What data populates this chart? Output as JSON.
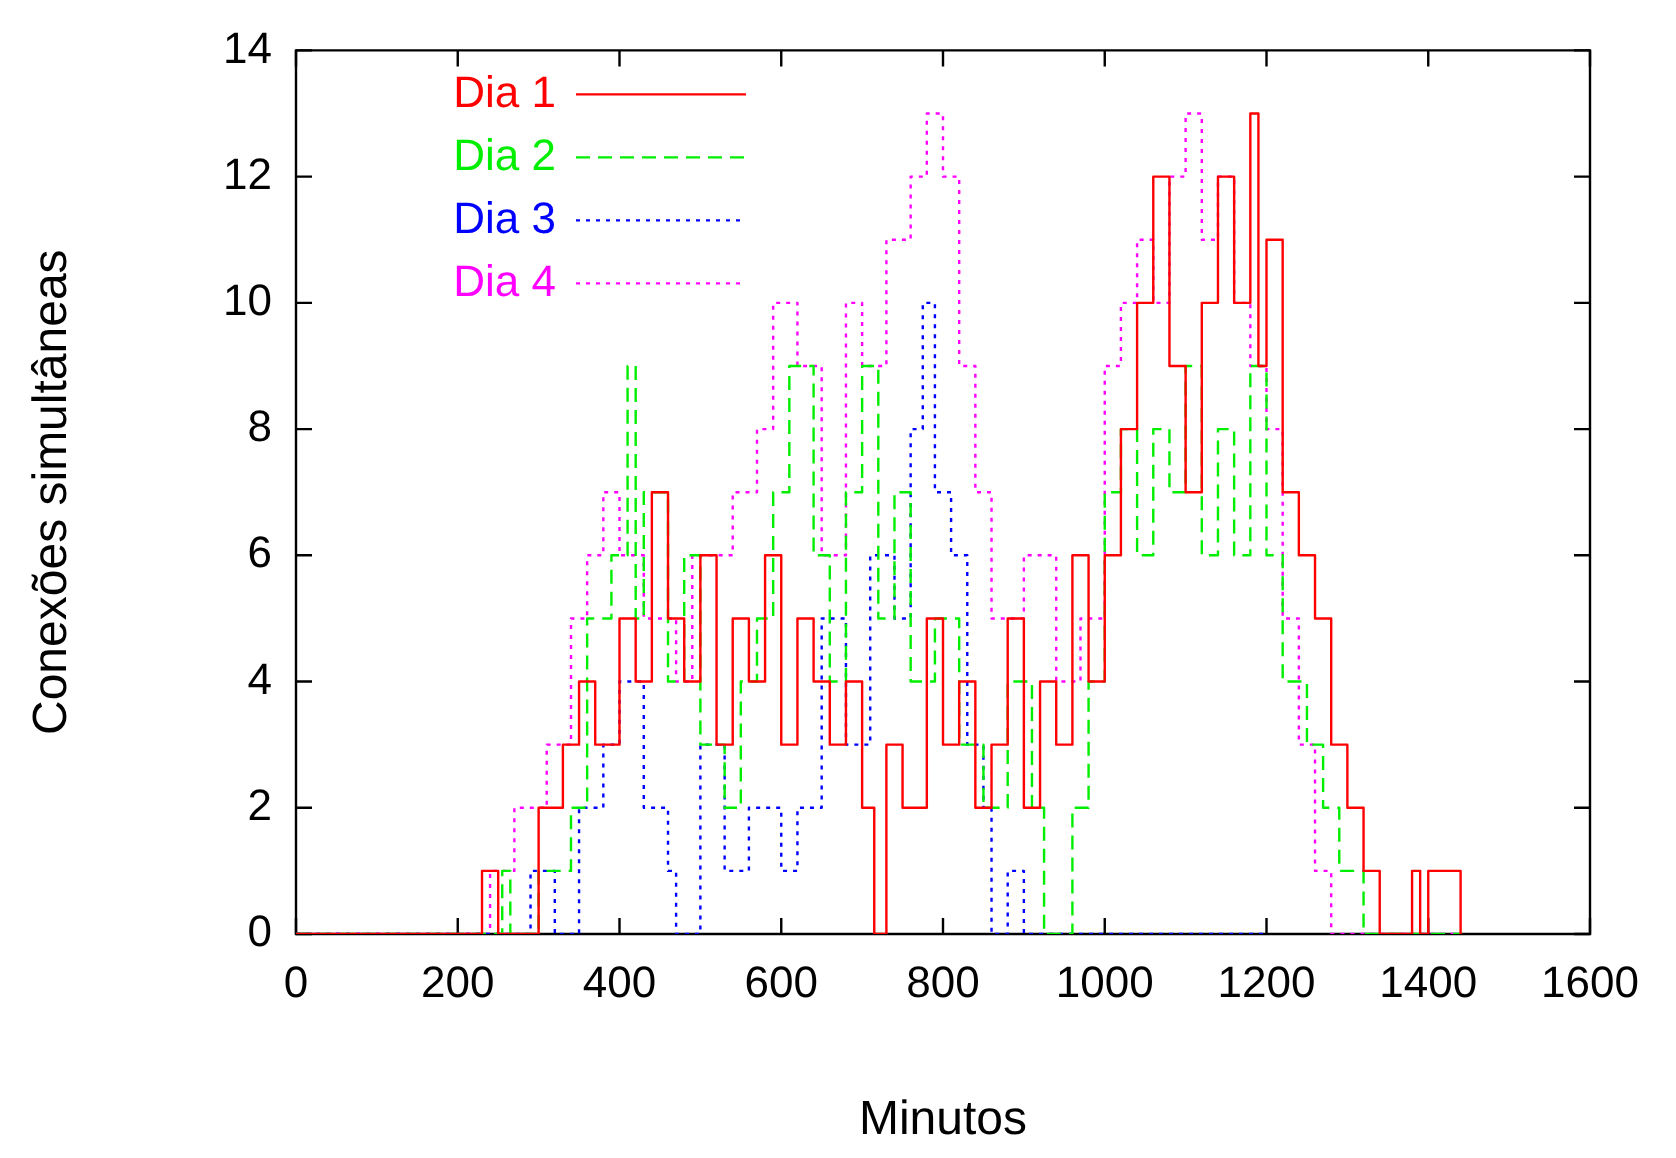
{
  "chart_data": {
    "type": "step",
    "xlabel": "Minutos",
    "ylabel": "Conexões simultâneas",
    "xlim": [
      0,
      1600
    ],
    "xticks": [
      0,
      200,
      400,
      600,
      800,
      1000,
      1200,
      1400,
      1600
    ],
    "ylim": [
      0,
      14
    ],
    "yticks": [
      0,
      2,
      4,
      6,
      8,
      10,
      12,
      14
    ],
    "grid": false,
    "legend": "top left",
    "marker": "none",
    "series": [
      {
        "name": "Dia 1",
        "color": "#ff0000",
        "line_style": "solid",
        "x": [
          0,
          230,
          250,
          300,
          330,
          350,
          370,
          400,
          420,
          440,
          460,
          480,
          500,
          520,
          540,
          560,
          580,
          600,
          620,
          640,
          660,
          680,
          700,
          715,
          730,
          750,
          780,
          800,
          820,
          840,
          860,
          880,
          900,
          920,
          940,
          960,
          980,
          1000,
          1020,
          1040,
          1060,
          1080,
          1100,
          1120,
          1140,
          1160,
          1180,
          1190,
          1200,
          1220,
          1240,
          1260,
          1280,
          1300,
          1320,
          1340,
          1380,
          1390,
          1400,
          1430,
          1440
        ],
        "values": [
          0,
          1,
          0,
          2,
          3,
          4,
          3,
          5,
          4,
          7,
          5,
          4,
          6,
          3,
          5,
          4,
          6,
          3,
          5,
          4,
          3,
          4,
          2,
          0,
          3,
          2,
          5,
          3,
          4,
          2,
          3,
          5,
          2,
          4,
          3,
          6,
          4,
          6,
          8,
          10,
          12,
          9,
          7,
          10,
          12,
          10,
          13,
          9,
          11,
          7,
          6,
          5,
          3,
          2,
          1,
          0,
          1,
          0,
          1,
          1,
          0
        ]
      },
      {
        "name": "Dia 2",
        "color": "#00ee00",
        "line_style": "dashed",
        "x": [
          0,
          255,
          265,
          300,
          340,
          360,
          390,
          410,
          420,
          430,
          460,
          480,
          500,
          530,
          550,
          570,
          590,
          610,
          640,
          660,
          680,
          700,
          720,
          740,
          760,
          790,
          820,
          850,
          880,
          910,
          925,
          960,
          980,
          1000,
          1020,
          1040,
          1060,
          1080,
          1100,
          1120,
          1140,
          1160,
          1180,
          1200,
          1220,
          1250,
          1270,
          1290,
          1310,
          1320,
          1440
        ],
        "values": [
          0,
          1,
          0,
          1,
          2,
          5,
          6,
          9,
          5,
          7,
          4,
          6,
          3,
          2,
          4,
          5,
          7,
          9,
          6,
          4,
          7,
          9,
          5,
          7,
          4,
          5,
          3,
          2,
          4,
          2,
          0,
          2,
          4,
          7,
          8,
          6,
          8,
          7,
          9,
          6,
          8,
          6,
          9,
          6,
          4,
          3,
          2,
          1,
          1,
          0,
          0
        ]
      },
      {
        "name": "Dia 3",
        "color": "#0000ff",
        "line_style": "dotted",
        "x": [
          0,
          260,
          290,
          320,
          350,
          380,
          400,
          430,
          460,
          470,
          500,
          530,
          560,
          600,
          620,
          650,
          680,
          710,
          740,
          760,
          775,
          790,
          810,
          830,
          850,
          860,
          880,
          900,
          1200
        ],
        "values": [
          0,
          0,
          1,
          0,
          2,
          3,
          4,
          2,
          1,
          0,
          3,
          1,
          2,
          1,
          2,
          5,
          3,
          6,
          5,
          8,
          10,
          7,
          6,
          3,
          2,
          0,
          1,
          0,
          0
        ]
      },
      {
        "name": "Dia 4",
        "color": "#ff00ff",
        "line_style": "dotted",
        "x": [
          0,
          240,
          270,
          310,
          340,
          360,
          380,
          400,
          430,
          470,
          490,
          540,
          570,
          590,
          620,
          650,
          680,
          700,
          730,
          760,
          780,
          800,
          820,
          840,
          860,
          900,
          940,
          970,
          1000,
          1020,
          1040,
          1060,
          1080,
          1100,
          1120,
          1140,
          1160,
          1180,
          1200,
          1220,
          1240,
          1260,
          1280,
          1440
        ],
        "values": [
          0,
          1,
          2,
          3,
          5,
          6,
          7,
          6,
          5,
          4,
          6,
          7,
          8,
          10,
          9,
          6,
          10,
          9,
          11,
          12,
          13,
          12,
          9,
          7,
          5,
          6,
          4,
          5,
          9,
          10,
          11,
          10,
          12,
          13,
          11,
          12,
          10,
          9,
          8,
          5,
          3,
          1,
          0,
          0
        ]
      }
    ]
  }
}
